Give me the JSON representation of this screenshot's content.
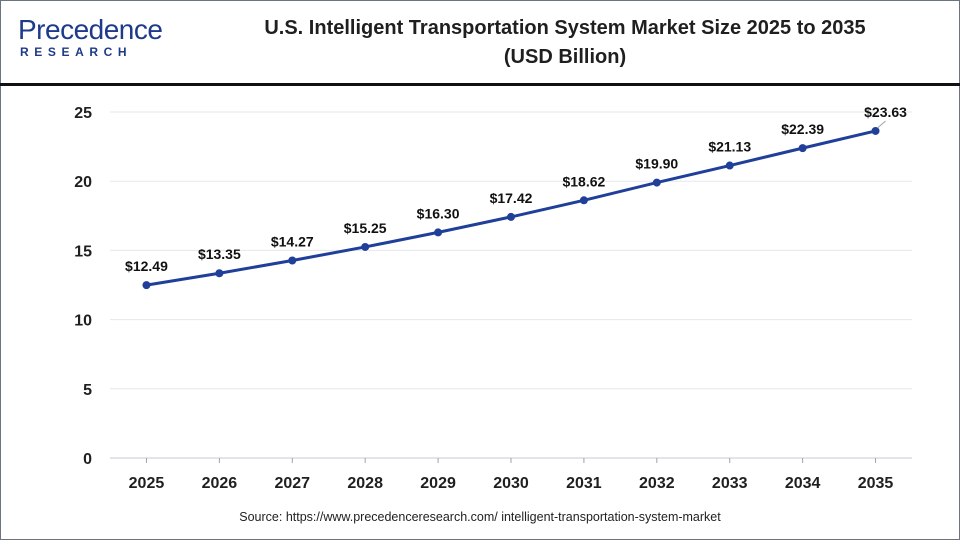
{
  "header": {
    "logo_main": "Precedence",
    "logo_sub": "RESEARCH",
    "title_line1": "U.S. Intelligent Transportation System Market Size 2025 to 2035",
    "title_line2": "(USD Billion)"
  },
  "source": "Source: https://www.precedenceresearch.com/ intelligent-transportation-system-market",
  "colors": {
    "line": "#1f3f99",
    "grid": "#e5e7eb",
    "logo": "#1e3a8a"
  },
  "chart_data": {
    "type": "line",
    "title": "U.S. Intelligent Transportation System Market Size 2025 to 2035 (USD Billion)",
    "xlabel": "",
    "ylabel": "",
    "ylim": [
      0,
      25
    ],
    "yticks": [
      "0",
      "5",
      "10",
      "15",
      "20",
      "25"
    ],
    "grid": true,
    "categories": [
      "2025",
      "2026",
      "2027",
      "2028",
      "2029",
      "2030",
      "2031",
      "2032",
      "2033",
      "2034",
      "2035"
    ],
    "series": [
      {
        "values": [
          12.49,
          13.35,
          14.27,
          15.25,
          16.3,
          17.42,
          18.62,
          19.9,
          21.13,
          22.39,
          23.63
        ],
        "labels": [
          "$12.49",
          "$13.35",
          "$14.27",
          "$15.25",
          "$16.30",
          "$17.42",
          "$18.62",
          "$19.90",
          "$21.13",
          "$22.39",
          "$23.63"
        ]
      }
    ]
  }
}
